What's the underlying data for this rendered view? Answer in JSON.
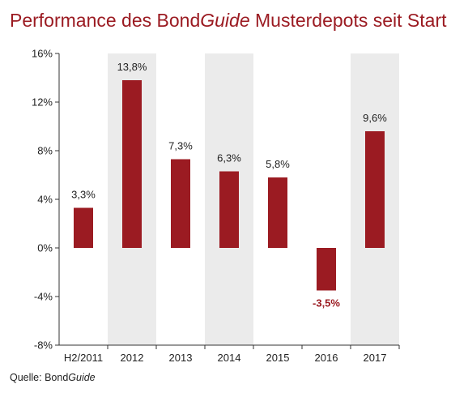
{
  "title": {
    "prefix": "Performance des Bond",
    "italic": "Guide",
    "suffix": " Musterdepots seit Start"
  },
  "source": {
    "prefix": "Quelle: Bond",
    "italic": "Guide"
  },
  "chart_data": {
    "type": "bar",
    "categories": [
      "H2/2011",
      "2012",
      "2013",
      "2014",
      "2015",
      "2016",
      "2017"
    ],
    "values": [
      3.3,
      13.8,
      7.3,
      6.3,
      5.8,
      -3.5,
      9.6
    ],
    "value_labels": [
      "3,3%",
      "13,8%",
      "7,3%",
      "6,3%",
      "5,8%",
      "-3,5%",
      "9,6%"
    ],
    "yticks": [
      16,
      12,
      8,
      4,
      0,
      -4,
      -8
    ],
    "ytick_labels": [
      "16%",
      "12%",
      "8%",
      "4%",
      "0%",
      "-4%",
      "-8%"
    ],
    "ylim": [
      -8,
      16
    ],
    "shaded_categories": [
      "2012",
      "2014",
      "2017"
    ],
    "grid": false,
    "colors": {
      "bar": "#9b1b22",
      "shade": "#ebebeb",
      "axis": "#333333",
      "negative_label": "#9b1b22"
    }
  }
}
